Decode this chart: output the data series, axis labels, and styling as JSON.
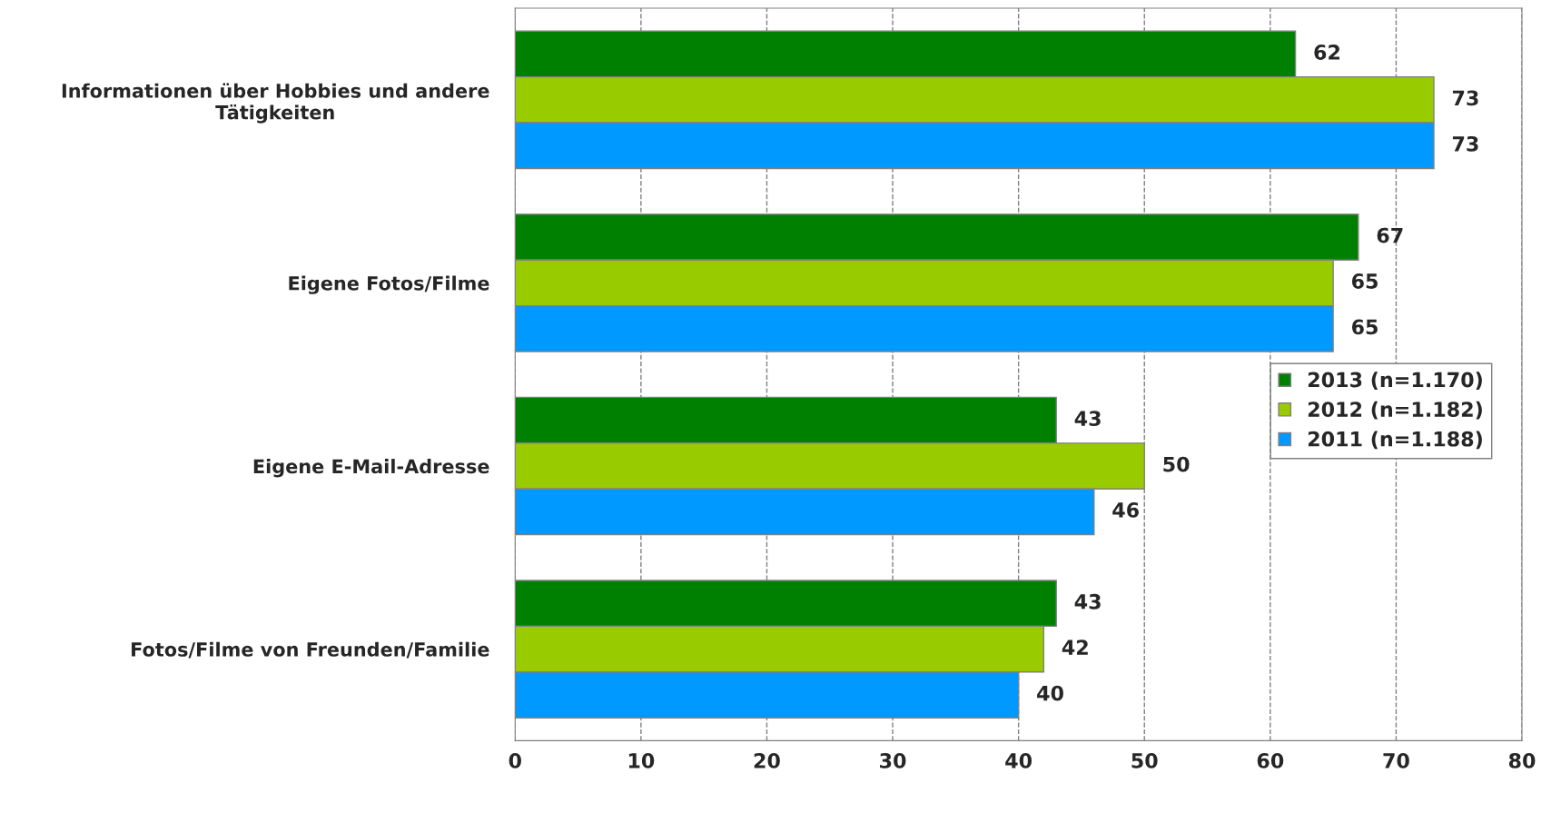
{
  "chart_data": {
    "type": "bar",
    "orientation": "horizontal",
    "categories": [
      "Informationen über Hobbies und andere\nTätigkeiten",
      "Eigene Fotos/Filme",
      "Eigene E-Mail-Adresse",
      "Fotos/Filme von Freunden/Familie"
    ],
    "series": [
      {
        "name": "2013 (n=1.170)",
        "color": "#008000",
        "values": [
          62,
          67,
          43,
          43
        ]
      },
      {
        "name": "2012 (n=1.182)",
        "color": "#99cc00",
        "values": [
          73,
          65,
          50,
          42
        ]
      },
      {
        "name": "2011 (n=1.188)",
        "color": "#0099ff",
        "values": [
          73,
          65,
          46,
          40
        ]
      }
    ],
    "xlim": [
      0,
      80
    ],
    "xticks": [
      0,
      10,
      20,
      30,
      40,
      50,
      60,
      70,
      80
    ],
    "grid": "x",
    "legend": "right",
    "data_labels": true
  }
}
